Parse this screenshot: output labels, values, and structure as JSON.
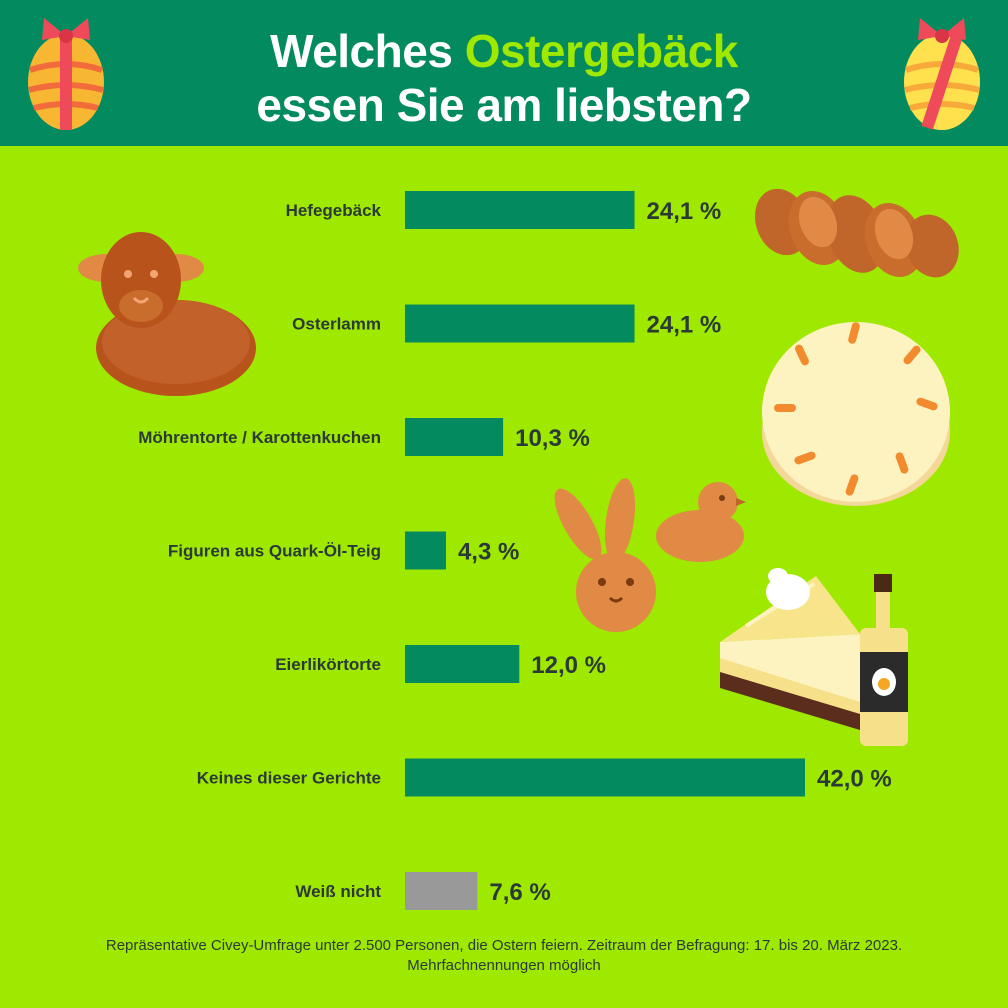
{
  "header": {
    "title_part1": "Welches ",
    "title_highlight": "Ostergebäck",
    "title_line2": "essen Sie am liebsten?"
  },
  "colors": {
    "header_bg": "#048a5f",
    "page_bg": "#9fe800",
    "bar": "#048a5f",
    "bar_unknown": "#999999",
    "title_highlight": "#9fe800",
    "text": "#2b3a36"
  },
  "icons": [
    "easter-egg-icon",
    "braided-bread-icon",
    "easter-lamb-cake-icon",
    "carrot-cake-icon",
    "bunny-cookie-icon",
    "chick-cookie-icon",
    "eggnog-cake-icon",
    "eggnog-bottle-icon"
  ],
  "chart_data": {
    "type": "bar",
    "orientation": "horizontal",
    "categories": [
      "Hefegebäck",
      "Osterlamm",
      "Möhrentorte / Karottenkuchen",
      "Figuren aus Quark-Öl-Teig",
      "Eierlikörtorte",
      "Keines dieser Gerichte",
      "Weiß nicht"
    ],
    "values": [
      24.1,
      24.1,
      10.3,
      4.3,
      12.0,
      42.0,
      7.6
    ],
    "value_labels": [
      "24,1 %",
      "24,1 %",
      "10,3 %",
      "4,3 %",
      "12,0 %",
      "42,0 %",
      "7,6 %"
    ],
    "bar_colors": [
      "#048a5f",
      "#048a5f",
      "#048a5f",
      "#048a5f",
      "#048a5f",
      "#048a5f",
      "#999999"
    ],
    "xlim": [
      0,
      42.0
    ],
    "unit": "%",
    "grid": false,
    "legend": "none"
  },
  "footnote": {
    "line1": "Repräsentative Civey-Umfrage unter 2.500 Personen, die Ostern feiern. Zeitraum der Befragung: 17. bis 20. März 2023.",
    "line2": "Mehrfachnennungen möglich"
  }
}
